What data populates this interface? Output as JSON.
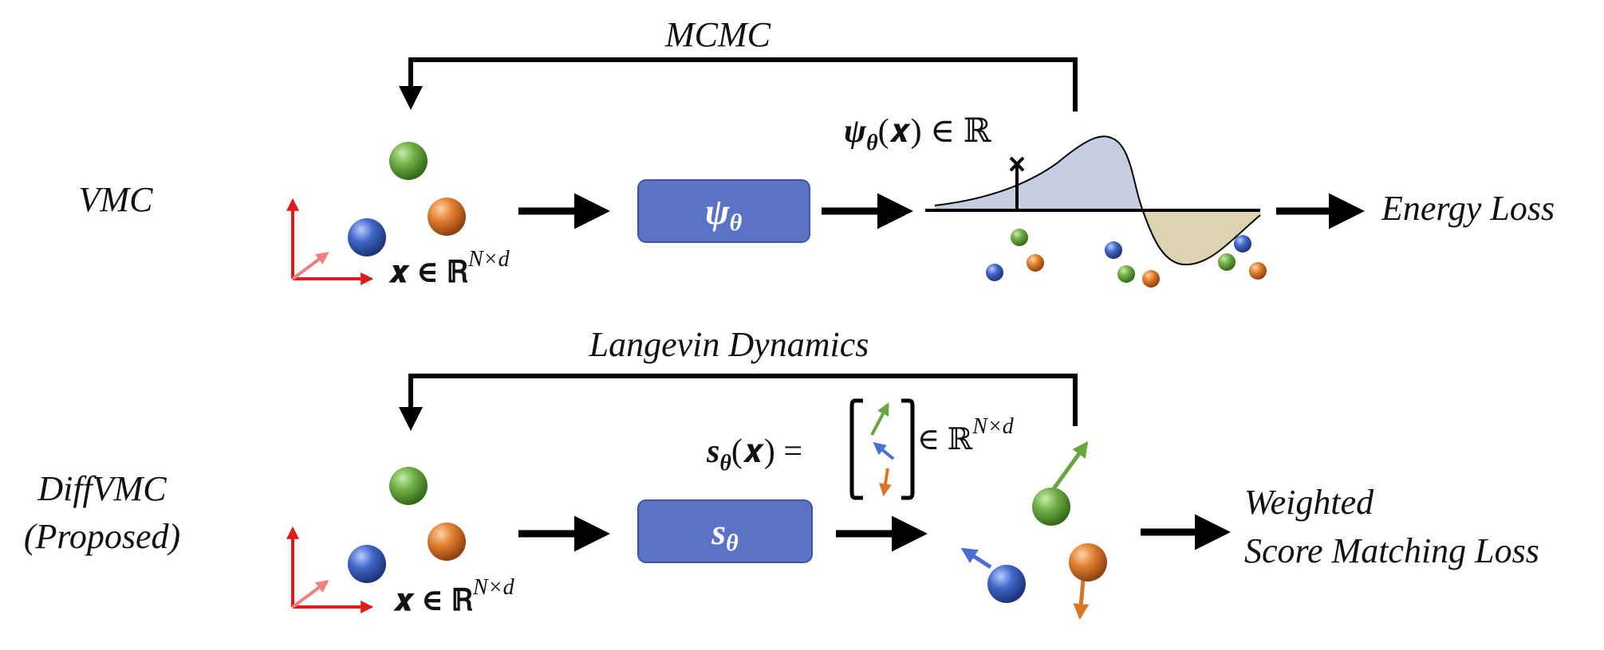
{
  "rows": [
    {
      "name": "VMC",
      "label_lines": [
        "VMC"
      ],
      "loop_label": "MCMC",
      "input_label": "𝒙 ∈ ℝ",
      "input_sup": "N×d",
      "box_symbol": "ψ",
      "box_sub": "θ",
      "output_label_main": "ψ",
      "output_label_sub": "θ",
      "output_label_rest": "(𝒙) ∈ ℝ",
      "loss_lines": [
        "Energy Loss"
      ]
    },
    {
      "name": "DiffVMC",
      "label_lines": [
        "DiffVMC",
        "(Proposed)"
      ],
      "loop_label": "Langevin Dynamics",
      "input_label": "𝒙 ∈ ℝ",
      "input_sup": "N×d",
      "box_symbol": "s",
      "box_sub": "θ",
      "output_label_main": "s",
      "output_label_sub": "θ",
      "output_label_rest": "(𝒙) =",
      "output_label_after": "∈ ℝ",
      "output_label_after_sup": "N×d",
      "loss_lines": [
        "Weighted",
        "Score Matching Loss"
      ]
    }
  ],
  "colors": {
    "box_fill": "#5b73c4",
    "box_stroke": "#3f56a3",
    "green": "#5a9a34",
    "orange": "#d8752a",
    "blue": "#3c62c0",
    "axis_red": "#e01b1b",
    "curve_pos": "#c5cee0",
    "curve_neg": "#dcd3b0"
  }
}
